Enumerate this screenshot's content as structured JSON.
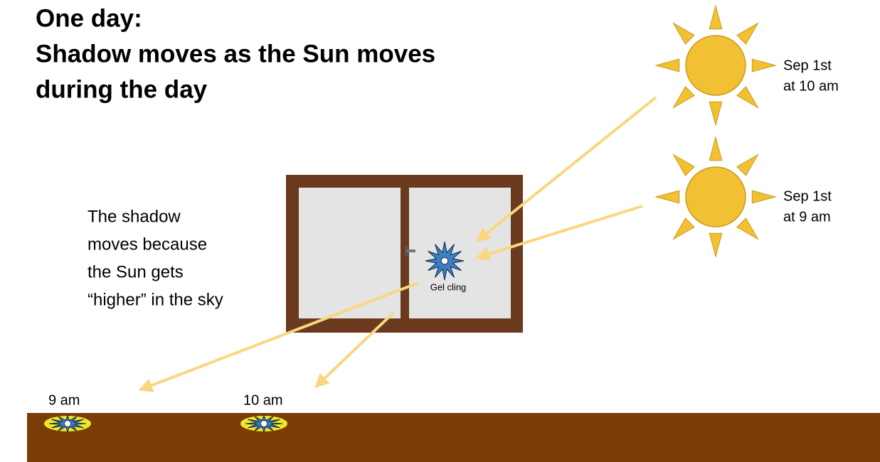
{
  "title": [
    "One day:",
    "Shadow moves as the Sun moves",
    "during the day"
  ],
  "note": [
    "The shadow",
    "moves because",
    "the Sun gets",
    "“higher” in the sky"
  ],
  "suns": [
    {
      "label": [
        "Sep 1st",
        "at 10 am"
      ]
    },
    {
      "label": [
        "Sep 1st",
        "at 9 am"
      ]
    }
  ],
  "window": {
    "label": "Gel cling"
  },
  "ground": {
    "labels": [
      "9 am",
      "10 am"
    ]
  }
}
